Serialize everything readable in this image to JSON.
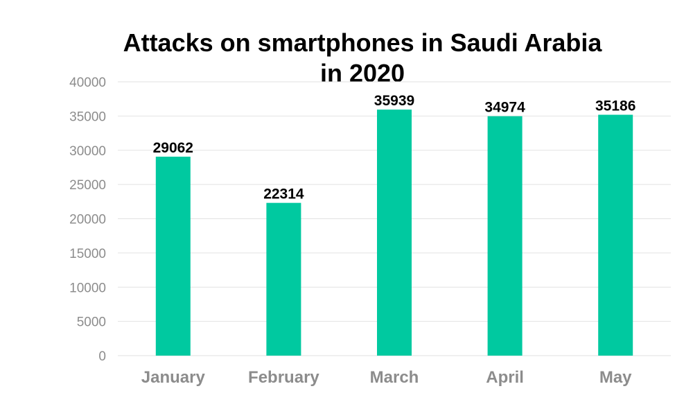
{
  "chart_data": {
    "type": "bar",
    "title_lines": [
      "Attacks on smartphones in Saudi Arabia",
      "in 2020"
    ],
    "categories": [
      "January",
      "February",
      "March",
      "April",
      "May"
    ],
    "values": [
      29062,
      22314,
      35939,
      34974,
      35186
    ],
    "data_labels": [
      "29062",
      "22314",
      "35939",
      "34974",
      "35186"
    ],
    "y_ticks": [
      0,
      5000,
      10000,
      15000,
      20000,
      25000,
      30000,
      35000,
      40000
    ],
    "ylim": [
      0,
      40000
    ],
    "xlabel": "",
    "ylabel": "",
    "grid": true,
    "legend": "none",
    "colors": {
      "bar": "#00C9A0",
      "grid": "#e2e2e2",
      "axis_text": "#8c8c8c",
      "data_label": "#000000",
      "title": "#000000"
    }
  }
}
